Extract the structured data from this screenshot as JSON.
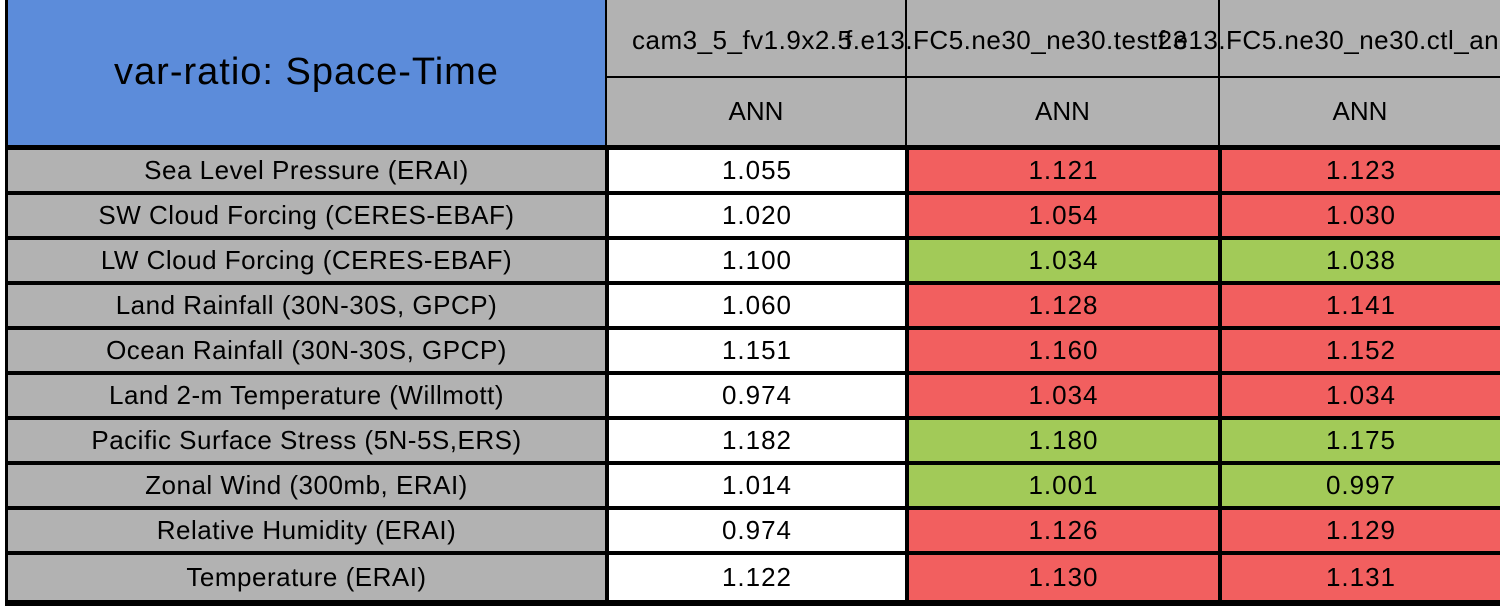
{
  "title": "var-ratio: Space-Time",
  "palette": {
    "blue": "#5c8cda",
    "gray": "#b2b2b2",
    "red": "#f25f5f",
    "green": "#a2ca58",
    "white": "#ffffff",
    "border": "#000000"
  },
  "columns": [
    {
      "case": "cam3_5_fv1.9x2.5",
      "season": "ANN"
    },
    {
      "case": "f.e13.FC5.ne30_ne30.test23",
      "season": "ANN"
    },
    {
      "case": "f.e13.FC5.ne30_ne30.ctl_an",
      "season": "ANN"
    }
  ],
  "chart_data": {
    "type": "table",
    "title": "var-ratio: Space-Time",
    "column_headers": [
      "cam3_5_fv1.9x2.5",
      "f.e13.FC5.ne30_ne30.test23",
      "f.e13.FC5.ne30_ne30.ctl_an"
    ],
    "sub_headers": [
      "ANN",
      "ANN",
      "ANN"
    ],
    "cell_color_meaning": {
      "white": "reference case values",
      "red": "red-highlighted metric cell",
      "green": "green-highlighted metric cell"
    },
    "rows": [
      {
        "label": "Sea Level Pressure (ERAI)",
        "values": [
          "1.055",
          "1.121",
          "1.123"
        ],
        "colors": [
          "white",
          "red",
          "red"
        ]
      },
      {
        "label": "SW Cloud Forcing (CERES-EBAF)",
        "values": [
          "1.020",
          "1.054",
          "1.030"
        ],
        "colors": [
          "white",
          "red",
          "red"
        ]
      },
      {
        "label": "LW Cloud Forcing (CERES-EBAF)",
        "values": [
          "1.100",
          "1.034",
          "1.038"
        ],
        "colors": [
          "white",
          "green",
          "green"
        ]
      },
      {
        "label": "Land Rainfall (30N-30S, GPCP)",
        "values": [
          "1.060",
          "1.128",
          "1.141"
        ],
        "colors": [
          "white",
          "red",
          "red"
        ]
      },
      {
        "label": "Ocean Rainfall (30N-30S, GPCP)",
        "values": [
          "1.151",
          "1.160",
          "1.152"
        ],
        "colors": [
          "white",
          "red",
          "red"
        ]
      },
      {
        "label": "Land 2-m Temperature (Willmott)",
        "values": [
          "0.974",
          "1.034",
          "1.034"
        ],
        "colors": [
          "white",
          "red",
          "red"
        ]
      },
      {
        "label": "Pacific Surface Stress (5N-5S,ERS)",
        "values": [
          "1.182",
          "1.180",
          "1.175"
        ],
        "colors": [
          "white",
          "green",
          "green"
        ]
      },
      {
        "label": "Zonal Wind (300mb, ERAI)",
        "values": [
          "1.014",
          "1.001",
          "0.997"
        ],
        "colors": [
          "white",
          "green",
          "green"
        ]
      },
      {
        "label": "Relative Humidity (ERAI)",
        "values": [
          "0.974",
          "1.126",
          "1.129"
        ],
        "colors": [
          "white",
          "red",
          "red"
        ]
      },
      {
        "label": "Temperature (ERAI)",
        "values": [
          "1.122",
          "1.130",
          "1.131"
        ],
        "colors": [
          "white",
          "red",
          "red"
        ]
      }
    ]
  }
}
